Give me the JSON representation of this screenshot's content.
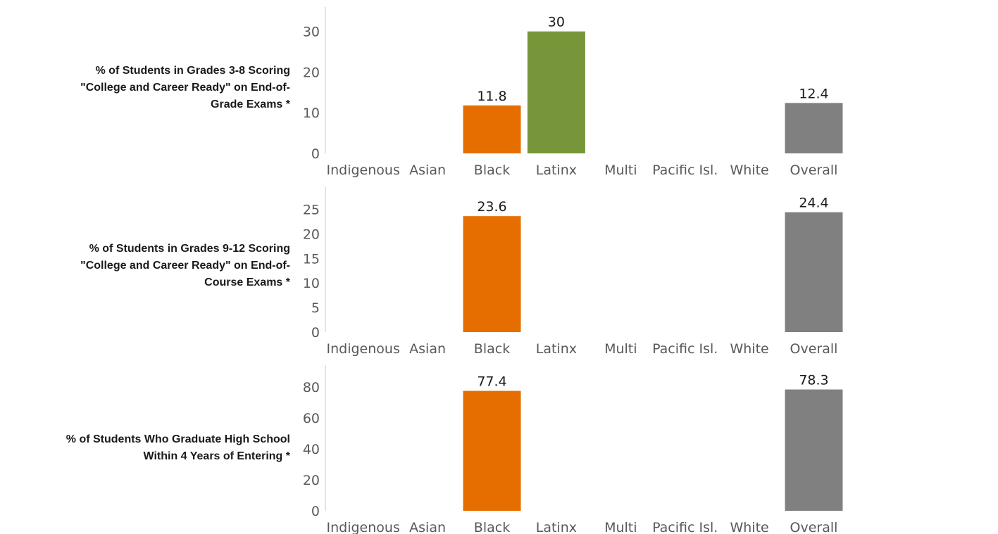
{
  "colors": {
    "Black": "#e66e00",
    "Latinx": "#77963a",
    "Overall": "#808080",
    "axis": "#c8c8c8"
  },
  "chart_data": [
    {
      "type": "bar",
      "label": "% of Students in Grades 3-8 Scoring\n\"College and Career Ready\" on End-of-\nGrade Exams *",
      "categories": [
        "Indigenous",
        "Asian",
        "Black",
        "Latinx",
        "Multi",
        "Pacific Isl.",
        "White",
        "Overall"
      ],
      "values": [
        null,
        null,
        11.8,
        30,
        null,
        null,
        null,
        12.4
      ],
      "value_labels": [
        "",
        "",
        "11.8",
        "30",
        "",
        "",
        "",
        "12.4"
      ],
      "yticks": [
        0,
        10,
        20,
        30
      ],
      "ylim": [
        0,
        36
      ]
    },
    {
      "type": "bar",
      "label": "% of Students in Grades 9-12 Scoring\n\"College and Career Ready\" on End-of-\nCourse Exams *",
      "categories": [
        "Indigenous",
        "Asian",
        "Black",
        "Latinx",
        "Multi",
        "Pacific Isl.",
        "White",
        "Overall"
      ],
      "values": [
        null,
        null,
        23.6,
        null,
        null,
        null,
        null,
        24.4
      ],
      "value_labels": [
        "",
        "",
        "23.6",
        "",
        "",
        "",
        "",
        "24.4"
      ],
      "yticks": [
        0,
        5,
        10,
        15,
        20,
        25
      ],
      "ylim": [
        0,
        29.5
      ]
    },
    {
      "type": "bar",
      "label": "% of Students Who Graduate High School\nWithin 4 Years of Entering *",
      "categories": [
        "Indigenous",
        "Asian",
        "Black",
        "Latinx",
        "Multi",
        "Pacific Isl.",
        "White",
        "Overall"
      ],
      "values": [
        null,
        null,
        77.4,
        null,
        null,
        null,
        null,
        78.3
      ],
      "value_labels": [
        "",
        "",
        "77.4",
        "",
        "",
        "",
        "",
        "78.3"
      ],
      "yticks": [
        0,
        20,
        40,
        60,
        80
      ],
      "ylim": [
        0,
        94
      ]
    }
  ]
}
